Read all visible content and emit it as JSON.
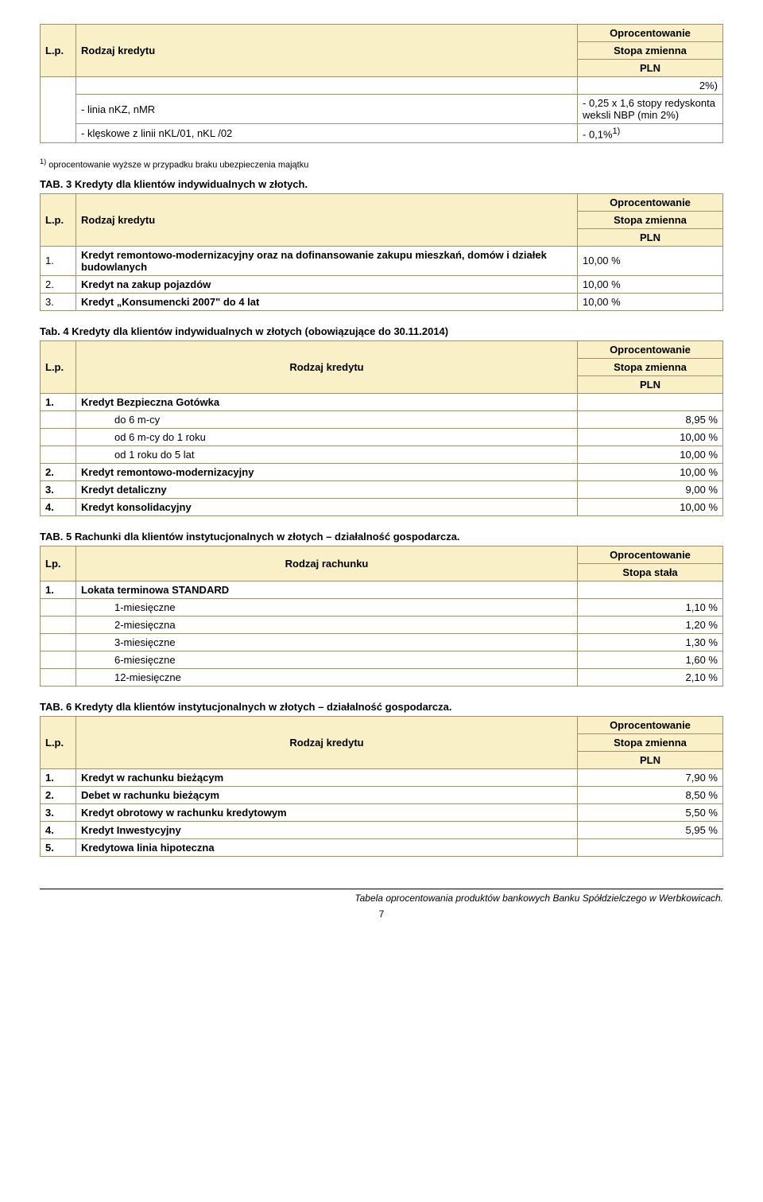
{
  "tab1": {
    "h_lp": "L.p.",
    "h_rodzaj": "Rodzaj kredytu",
    "h_opc": "Oprocentowanie",
    "h_sz": "Stopa zmienna",
    "h_pln": "PLN",
    "r0_val": "2%)",
    "r1_label": "- linia nKZ, nMR",
    "r1_val": "- 0,25 x 1,6 stopy redyskonta weksli NBP (min 2%)",
    "r2_label": "- klęskowe z linii nKL/01, nKL /02",
    "r2_val": "- 0,1%",
    "r2_sup": "1)",
    "fn_sup": "1)",
    "fn": " oprocentowanie wyższe w przypadku braku ubezpieczenia majątku"
  },
  "tab3": {
    "title": "TAB. 3 Kredyty dla klientów indywidualnych w złotych.",
    "h_lp": "L.p.",
    "h_rodzaj": "Rodzaj kredytu",
    "h_opc": "Oprocentowanie",
    "h_sz": "Stopa zmienna",
    "h_pln": "PLN",
    "r1_n": "1.",
    "r1_l": "Kredyt remontowo-modernizacyjny oraz na dofinansowanie zakupu mieszkań, domów i działek budowlanych",
    "r1_v": "10,00 %",
    "r2_n": "2.",
    "r2_l": "Kredyt na zakup pojazdów",
    "r2_v": "10,00 %",
    "r3_n": "3.",
    "r3_l": "Kredyt „Konsumencki 2007\" do 4 lat",
    "r3_v": "10,00 %"
  },
  "tab4": {
    "title": "Tab. 4 Kredyty dla klientów indywidualnych w złotych (obowiązujące do 30.11.2014)",
    "h_lp": "L.p.",
    "h_rodzaj": "Rodzaj kredytu",
    "h_opc": "Oprocentowanie",
    "h_sz": "Stopa zmienna",
    "h_pln": "PLN",
    "r1_n": "1.",
    "r1_l": "Kredyt Bezpieczna Gotówka",
    "r1a_l": "do 6 m-cy",
    "r1a_v": "8,95 %",
    "r1b_l": "od 6 m-cy do 1 roku",
    "r1b_v": "10,00 %",
    "r1c_l": "od 1 roku do 5 lat",
    "r1c_v": "10,00 %",
    "r2_n": "2.",
    "r2_l": "Kredyt remontowo-modernizacyjny",
    "r2_v": "10,00 %",
    "r3_n": "3.",
    "r3_l": "Kredyt detaliczny",
    "r3_v": "9,00 %",
    "r4_n": "4.",
    "r4_l": "Kredyt konsolidacyjny",
    "r4_v": "10,00 %"
  },
  "tab5": {
    "title": "TAB. 5 Rachunki dla klientów instytucjonalnych w złotych – działalność gospodarcza.",
    "h_lp": "Lp.",
    "h_rodzaj": "Rodzaj rachunku",
    "h_opc": "Oprocentowanie",
    "h_ss": "Stopa stała",
    "r1_n": "1.",
    "r1_l": "Lokata terminowa STANDARD",
    "r1a_l": "1-miesięczne",
    "r1a_v": "1,10 %",
    "r1b_l": "2-miesięczna",
    "r1b_v": "1,20 %",
    "r1c_l": "3-miesięczne",
    "r1c_v": "1,30 %",
    "r1d_l": "6-miesięczne",
    "r1d_v": "1,60 %",
    "r1e_l": "12-miesięczne",
    "r1e_v": "2,10 %"
  },
  "tab6": {
    "title": "TAB. 6 Kredyty dla klientów instytucjonalnych w złotych – działalność gospodarcza.",
    "h_lp": "L.p.",
    "h_rodzaj": "Rodzaj kredytu",
    "h_opc": "Oprocentowanie",
    "h_sz": "Stopa zmienna",
    "h_pln": "PLN",
    "r1_n": "1.",
    "r1_l": "Kredyt w rachunku bieżącym",
    "r1_v": "7,90 %",
    "r2_n": "2.",
    "r2_l": "Debet w rachunku bieżącym",
    "r2_v": "8,50 %",
    "r3_n": "3.",
    "r3_l": "Kredyt obrotowy w rachunku kredytowym",
    "r3_v": "5,50 %",
    "r4_n": "4.",
    "r4_l": "Kredyt Inwestycyjny",
    "r4_v": "5,95 %",
    "r5_n": "5.",
    "r5_l": "Kredytowa linia hipoteczna"
  },
  "footer": "Tabela oprocentowania produktów bankowych Banku Spółdzielczego w Werbkowicach.",
  "page": "7"
}
